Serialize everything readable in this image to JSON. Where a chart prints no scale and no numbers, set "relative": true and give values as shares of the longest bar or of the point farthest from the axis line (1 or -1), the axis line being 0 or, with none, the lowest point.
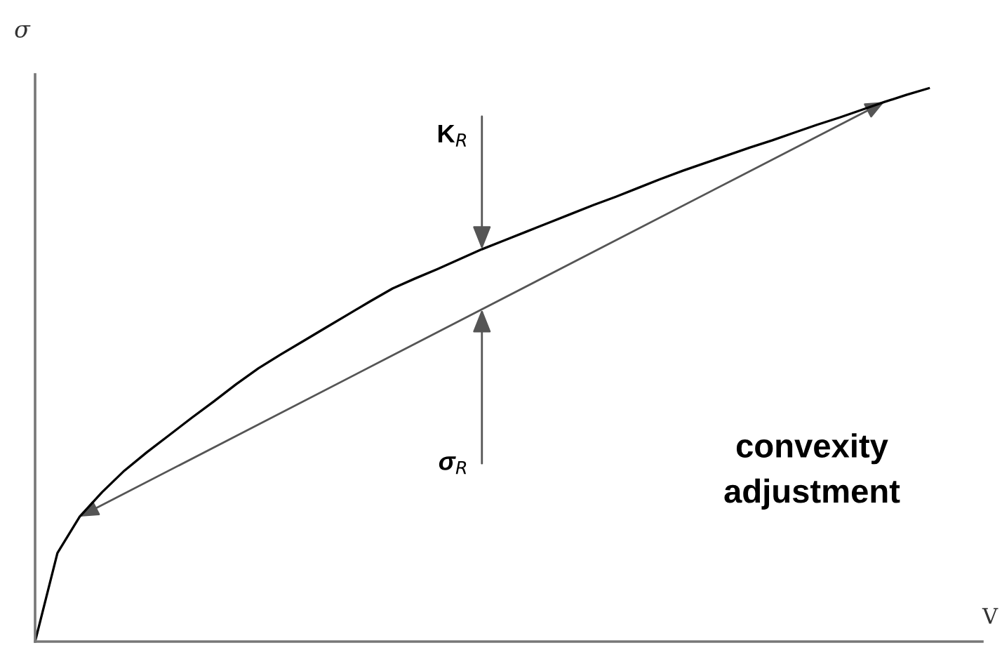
{
  "chart_data": {
    "type": "line",
    "relative": true,
    "xlabel": "V",
    "ylabel": "σ",
    "categories": [
      null,
      null,
      null,
      null,
      null,
      null,
      null,
      null,
      null,
      null,
      null,
      null,
      null,
      null,
      null,
      null,
      null,
      null,
      null,
      null,
      null,
      null,
      null,
      null,
      null,
      null,
      null,
      null,
      null,
      null,
      null,
      null,
      null,
      null,
      null,
      null,
      null,
      null,
      null,
      null,
      null
    ],
    "series": [
      {
        "color": "#000000",
        "values": [
          0,
          0.16,
          0.226,
          0.27,
          0.309,
          0.342,
          0.373,
          0.404,
          0.434,
          0.465,
          0.494,
          0.519,
          0.543,
          0.567,
          0.591,
          0.615,
          0.638,
          0.656,
          0.673,
          0.691,
          0.709,
          0.725,
          0.741,
          0.757,
          0.773,
          0.789,
          0.804,
          0.82,
          0.836,
          0.851,
          0.865,
          0.879,
          0.893,
          0.906,
          0.92,
          0.934,
          0.947,
          0.961,
          0.975,
          0.988,
          1
        ]
      }
    ],
    "annotations": [
      "K$_{R}$",
      "σ$_{R}$",
      "convexity\nadjustment"
    ]
  }
}
